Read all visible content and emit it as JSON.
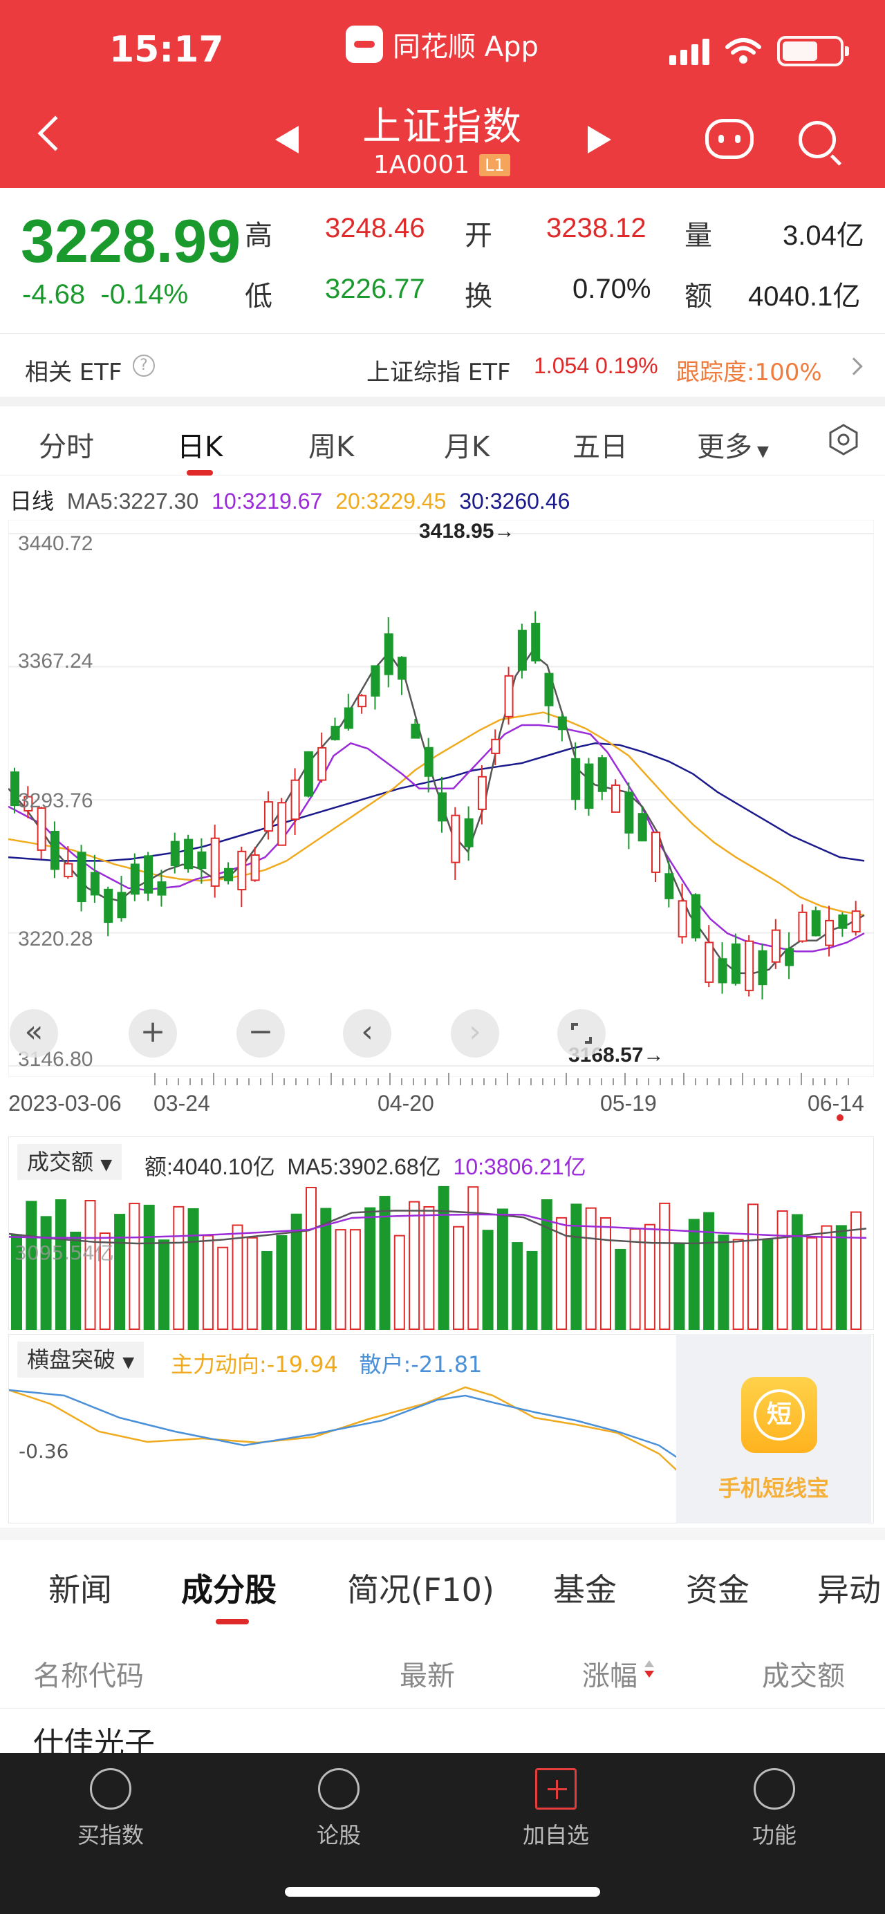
{
  "status": {
    "time": "15:17",
    "app_name": "同花顺 App"
  },
  "header": {
    "title": "上证指数",
    "code": "1A0001",
    "level_badge": "L1"
  },
  "quote": {
    "price": "3228.99",
    "change": "-4.68",
    "change_pct": "-0.14%",
    "high_label": "高",
    "high": "3248.46",
    "low_label": "低",
    "low": "3226.77",
    "open_label": "开",
    "open": "3238.12",
    "turnover_label": "换",
    "turnover": "0.70%",
    "volume_label": "量",
    "volume": "3.04亿",
    "amount_label": "额",
    "amount": "4040.1亿"
  },
  "etf": {
    "label": "相关 ETF",
    "name": "上证综指 ETF",
    "price": "1.054",
    "pct": "0.19%",
    "tracking": "跟踪度:100%"
  },
  "chart_tabs": [
    "分时",
    "日K",
    "周K",
    "月K",
    "五日",
    "更多"
  ],
  "ma": {
    "label": "日线",
    "ma5": "MA5:3227.30",
    "ma10": "10:3219.67",
    "ma20": "20:3229.45",
    "ma30": "30:3260.46"
  },
  "colors": {
    "ma5": "#555555",
    "ma10": "#9b2bd8",
    "ma20": "#f0aa1e",
    "ma30": "#1a1a8c",
    "up": "#e02a2a",
    "down": "#1a9a2c",
    "header": "#ec3b3f"
  },
  "chart_data": {
    "type": "candlestick",
    "y_ticks": [
      "3440.72",
      "3367.24",
      "3293.76",
      "3220.28",
      "3146.80"
    ],
    "ylim": [
      3146.8,
      3440.72
    ],
    "x_ticks": [
      "2023-03-06",
      "03-24",
      "04-20",
      "05-19",
      "06-14"
    ],
    "high_marker": "3418.95→",
    "low_marker": "3168.57→",
    "ma5": [
      3300,
      3290,
      3278,
      3265,
      3255,
      3245,
      3240,
      3238,
      3245,
      3250,
      3255,
      3258,
      3256,
      3250,
      3252,
      3260,
      3272,
      3285,
      3300,
      3315,
      3325,
      3335,
      3350,
      3365,
      3375,
      3362,
      3330,
      3300,
      3275,
      3265,
      3290,
      3330,
      3362,
      3375,
      3368,
      3340,
      3310,
      3302,
      3300,
      3298,
      3290,
      3275,
      3250,
      3230,
      3218,
      3205,
      3198,
      3198,
      3200,
      3210,
      3216,
      3216,
      3222,
      3225,
      3230
    ],
    "ma10": [
      3290,
      3285,
      3280,
      3270,
      3262,
      3255,
      3250,
      3245,
      3244,
      3245,
      3246,
      3250,
      3252,
      3255,
      3258,
      3262,
      3272,
      3285,
      3300,
      3318,
      3325,
      3322,
      3315,
      3308,
      3300,
      3300,
      3300,
      3310,
      3320,
      3330,
      3335,
      3335,
      3334,
      3332,
      3330,
      3320,
      3305,
      3290,
      3270,
      3255,
      3240,
      3228,
      3220,
      3216,
      3214,
      3212,
      3210,
      3210,
      3212,
      3215,
      3220
    ],
    "ma20": [
      3272,
      3270,
      3268,
      3266,
      3262,
      3258,
      3255,
      3252,
      3250,
      3249,
      3250,
      3252,
      3255,
      3260,
      3268,
      3276,
      3284,
      3292,
      3300,
      3310,
      3318,
      3325,
      3332,
      3338,
      3340,
      3342,
      3338,
      3333,
      3326,
      3318,
      3305,
      3292,
      3280,
      3270,
      3262,
      3255,
      3248,
      3240,
      3235,
      3232,
      3230
    ],
    "ma30": [
      3262,
      3261,
      3260,
      3260,
      3260,
      3261,
      3263,
      3265,
      3268,
      3272,
      3276,
      3280,
      3284,
      3288,
      3292,
      3296,
      3300,
      3303,
      3306,
      3310,
      3312,
      3314,
      3318,
      3322,
      3325,
      3324,
      3320,
      3315,
      3308,
      3298,
      3290,
      3282,
      3274,
      3268,
      3262,
      3260
    ]
  },
  "volume": {
    "selector": "成交额",
    "amount": "额:4040.10亿",
    "ma5": "MA5:3902.68亿",
    "ma10": "10:3806.21亿",
    "axis": "3095.54亿"
  },
  "indicator": {
    "selector": "横盘突破",
    "main_force": "主力动向:-19.94",
    "retail": "散户:-21.81",
    "axis": "-0.36"
  },
  "ad": {
    "icon_char": "短",
    "text": "手机短线宝"
  },
  "controls": {
    "collapse": "«",
    "zoom_in": "+",
    "zoom_out": "−",
    "prev": "‹",
    "next": "›"
  },
  "news_tabs": [
    "新闻",
    "成分股",
    "简况(F10)",
    "基金",
    "资金",
    "异动"
  ],
  "table_headers": [
    "名称代码",
    "最新",
    "涨幅",
    "成交额"
  ],
  "partial_row": "仕佳光子",
  "tabbar": [
    "买指数",
    "论股",
    "加自选",
    "功能"
  ]
}
